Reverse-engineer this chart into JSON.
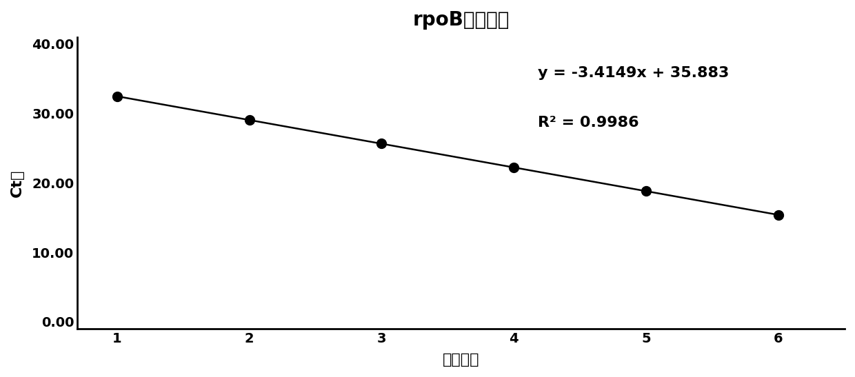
{
  "title": "rpoB基因引物",
  "xlabel": "浓度梯度",
  "ylabel": "Ct値",
  "x_data": [
    1,
    2,
    3,
    4,
    5,
    6
  ],
  "y_data": [
    32.47,
    29.06,
    25.64,
    22.22,
    18.8,
    15.37
  ],
  "slope": -3.4149,
  "intercept": 35.883,
  "r2": 0.9986,
  "equation_text": "y = -3.4149x + 35.883",
  "r2_text": "R² = 0.9986",
  "xlim": [
    1,
    6
  ],
  "ylim": [
    0,
    40
  ],
  "yticks": [
    0.0,
    10.0,
    20.0,
    30.0,
    40.0
  ],
  "ytick_labels": [
    "0.00",
    "10.00",
    "20.00",
    "30.00",
    "40.00"
  ],
  "xticks": [
    1,
    2,
    3,
    4,
    5,
    6
  ],
  "bg_color": "#ffffff",
  "line_color": "#000000",
  "dot_color": "#000000",
  "title_fontsize": 20,
  "label_fontsize": 16,
  "tick_fontsize": 14,
  "annot_fontsize": 16,
  "dot_size": 100,
  "line_width": 1.8
}
